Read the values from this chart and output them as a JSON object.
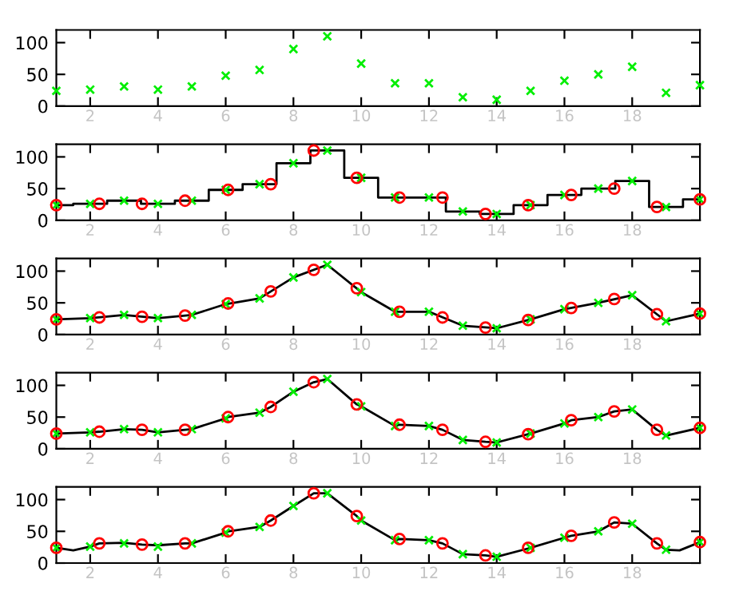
{
  "chart_data": [
    {
      "type": "scatter",
      "x": [
        1,
        2,
        3,
        4,
        5,
        6,
        7,
        8,
        9,
        10,
        11,
        12,
        13,
        14,
        15,
        16,
        17,
        18,
        19,
        20
      ],
      "values": [
        24,
        26,
        31,
        26,
        31,
        48,
        57,
        90,
        110,
        67,
        36,
        36,
        14,
        10,
        24,
        40,
        50,
        62,
        21,
        33
      ],
      "color": "#00ee00",
      "marker": "cross",
      "xlim": [
        1,
        20
      ],
      "xticks": [
        2,
        4,
        6,
        8,
        10,
        12,
        14,
        16,
        18
      ],
      "ylim": [
        0,
        120
      ],
      "yticks": [
        0,
        50,
        100
      ]
    },
    {
      "type": "line",
      "xlim": [
        1,
        20
      ],
      "xticks": [
        2,
        4,
        6,
        8,
        10,
        12,
        14,
        16,
        18
      ],
      "ylim": [
        0,
        120
      ],
      "yticks": [
        0,
        50,
        100
      ],
      "series": [
        {
          "type": "step",
          "color": "#000000",
          "marker": "none",
          "x": [
            1,
            2,
            3,
            4,
            5,
            6,
            7,
            8,
            9,
            10,
            11,
            12,
            13,
            14,
            15,
            16,
            17,
            18,
            19,
            20
          ],
          "values": [
            24,
            26,
            31,
            26,
            31,
            48,
            57,
            90,
            110,
            67,
            36,
            36,
            14,
            10,
            24,
            40,
            50,
            62,
            21,
            33
          ]
        },
        {
          "type": "scatter",
          "color": "#00ee00",
          "marker": "cross",
          "x": [
            1,
            2,
            3,
            4,
            5,
            6,
            7,
            8,
            9,
            10,
            11,
            12,
            13,
            14,
            15,
            16,
            17,
            18,
            19,
            20
          ],
          "values": [
            24,
            26,
            31,
            26,
            31,
            48,
            57,
            90,
            110,
            67,
            36,
            36,
            14,
            10,
            24,
            40,
            50,
            62,
            21,
            33
          ]
        },
        {
          "type": "scatter",
          "color": "#ff0000",
          "marker": "circle",
          "x": [
            1,
            2.27,
            3.53,
            4.8,
            6.07,
            7.33,
            8.6,
            9.87,
            11.13,
            12.4,
            13.67,
            14.93,
            16.2,
            17.47,
            18.73,
            20
          ],
          "values": [
            24,
            26,
            26,
            31,
            48,
            57,
            110,
            67,
            36,
            36,
            10,
            24,
            40,
            50,
            21,
            33
          ]
        }
      ]
    },
    {
      "type": "line",
      "xlim": [
        1,
        20
      ],
      "xticks": [
        2,
        4,
        6,
        8,
        10,
        12,
        14,
        16,
        18
      ],
      "ylim": [
        0,
        120
      ],
      "yticks": [
        0,
        50,
        100
      ],
      "series": [
        {
          "type": "line",
          "color": "#000000",
          "marker": "none",
          "x": [
            1,
            2,
            3,
            4,
            5,
            6,
            7,
            8,
            9,
            10,
            11,
            12,
            13,
            14,
            15,
            16,
            17,
            18,
            19,
            20
          ],
          "values": [
            24,
            26,
            31,
            26,
            31,
            48,
            57,
            90,
            110,
            67,
            36,
            36,
            14,
            10,
            24,
            40,
            50,
            62,
            21,
            33
          ]
        },
        {
          "type": "scatter",
          "color": "#00ee00",
          "marker": "cross",
          "x": [
            1,
            2,
            3,
            4,
            5,
            6,
            7,
            8,
            9,
            10,
            11,
            12,
            13,
            14,
            15,
            16,
            17,
            18,
            19,
            20
          ],
          "values": [
            24,
            26,
            31,
            26,
            31,
            48,
            57,
            90,
            110,
            67,
            36,
            36,
            14,
            10,
            24,
            40,
            50,
            62,
            21,
            33
          ]
        },
        {
          "type": "scatter",
          "color": "#ff0000",
          "marker": "circle",
          "x": [
            1,
            2.27,
            3.53,
            4.8,
            6.07,
            7.33,
            8.6,
            9.87,
            11.13,
            12.4,
            13.67,
            14.93,
            16.2,
            17.47,
            18.73,
            20
          ],
          "values": [
            24,
            27,
            28,
            30,
            49,
            68,
            102,
            73,
            36,
            27,
            11,
            23,
            42,
            56,
            32,
            33
          ]
        }
      ]
    },
    {
      "type": "line",
      "xlim": [
        1,
        20
      ],
      "xticks": [
        2,
        4,
        6,
        8,
        10,
        12,
        14,
        16,
        18
      ],
      "ylim": [
        0,
        120
      ],
      "yticks": [
        0,
        50,
        100
      ],
      "series": [
        {
          "type": "line",
          "color": "#000000",
          "marker": "none",
          "x": [
            1,
            2,
            2.27,
            3,
            3.53,
            4,
            4.8,
            5,
            6,
            6.07,
            7,
            7.33,
            8,
            8.6,
            9,
            9.87,
            10,
            11,
            11.13,
            12,
            12.4,
            13,
            13.67,
            14,
            14.93,
            15,
            16,
            16.2,
            17,
            17.47,
            18,
            18.73,
            19,
            20
          ],
          "values": [
            24,
            26,
            27,
            31,
            30,
            26,
            30,
            31,
            48,
            50,
            57,
            66,
            90,
            105,
            110,
            70,
            67,
            36,
            38,
            36,
            30,
            14,
            11,
            10,
            23,
            24,
            40,
            45,
            50,
            59,
            62,
            30,
            21,
            33
          ]
        },
        {
          "type": "scatter",
          "color": "#00ee00",
          "marker": "cross",
          "x": [
            1,
            2,
            3,
            4,
            5,
            6,
            7,
            8,
            9,
            10,
            11,
            12,
            13,
            14,
            15,
            16,
            17,
            18,
            19,
            20
          ],
          "values": [
            24,
            26,
            31,
            26,
            31,
            48,
            57,
            90,
            110,
            67,
            36,
            36,
            14,
            10,
            24,
            40,
            50,
            62,
            21,
            33
          ]
        },
        {
          "type": "scatter",
          "color": "#ff0000",
          "marker": "circle",
          "x": [
            1,
            2.27,
            3.53,
            4.8,
            6.07,
            7.33,
            8.6,
            9.87,
            11.13,
            12.4,
            13.67,
            14.93,
            16.2,
            17.47,
            18.73,
            20
          ],
          "values": [
            24,
            27,
            30,
            30,
            50,
            66,
            105,
            70,
            38,
            30,
            11,
            23,
            45,
            59,
            30,
            33
          ]
        }
      ]
    },
    {
      "type": "line",
      "xlim": [
        1,
        20
      ],
      "xticks": [
        2,
        4,
        6,
        8,
        10,
        12,
        14,
        16,
        18
      ],
      "ylim": [
        0,
        120
      ],
      "yticks": [
        0,
        50,
        100
      ],
      "series": [
        {
          "type": "line",
          "color": "#000000",
          "marker": "none",
          "x": [
            1,
            1.5,
            2,
            2.27,
            3,
            3.53,
            4,
            4.8,
            5,
            6,
            6.07,
            7,
            7.33,
            8,
            8.6,
            9,
            9.87,
            10,
            11,
            11.13,
            12,
            12.4,
            13,
            13.67,
            14,
            14.93,
            15,
            16,
            16.2,
            17,
            17.47,
            18,
            18.73,
            19,
            19.4,
            20
          ],
          "values": [
            24,
            20,
            26,
            31,
            32,
            29,
            28,
            31,
            31,
            48,
            50,
            57,
            67,
            90,
            110,
            110,
            74,
            67,
            36,
            38,
            36,
            31,
            14,
            12,
            10,
            23,
            24,
            40,
            43,
            50,
            64,
            62,
            31,
            21,
            20,
            33
          ]
        },
        {
          "type": "scatter",
          "color": "#00ee00",
          "marker": "cross",
          "x": [
            1,
            2,
            3,
            4,
            5,
            6,
            7,
            8,
            9,
            10,
            11,
            12,
            13,
            14,
            15,
            16,
            17,
            18,
            19,
            20
          ],
          "values": [
            24,
            26,
            31,
            26,
            31,
            48,
            57,
            90,
            110,
            67,
            36,
            36,
            14,
            10,
            24,
            40,
            50,
            62,
            21,
            33
          ]
        },
        {
          "type": "scatter",
          "color": "#ff0000",
          "marker": "circle",
          "x": [
            1,
            2.27,
            3.53,
            4.8,
            6.07,
            7.33,
            8.6,
            9.87,
            11.13,
            12.4,
            13.67,
            14.93,
            16.2,
            17.47,
            18.73,
            20
          ],
          "values": [
            24,
            31,
            29,
            31,
            50,
            67,
            110,
            74,
            38,
            31,
            12,
            24,
            43,
            64,
            31,
            33
          ]
        }
      ]
    }
  ]
}
